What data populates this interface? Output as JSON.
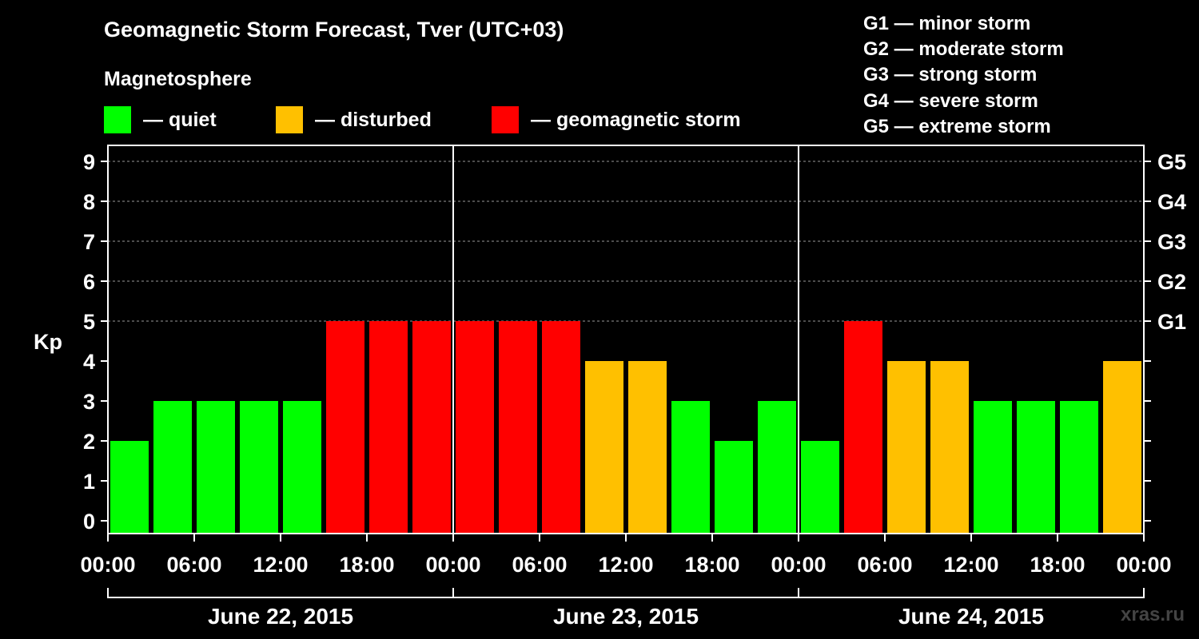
{
  "title": "Geomagnetic Storm Forecast, Tver (UTC+03)",
  "legend": {
    "heading": "Magnetosphere",
    "items": [
      {
        "label": "— quiet",
        "color": "#00ff00"
      },
      {
        "label": "— disturbed",
        "color": "#ffc000"
      },
      {
        "label": "— geomagnetic storm",
        "color": "#ff0000"
      }
    ]
  },
  "storm_scale": [
    "G1 — minor storm",
    "G2 — moderate storm",
    "G3 — strong storm",
    "G4 — severe storm",
    "G5 — extreme storm"
  ],
  "watermark": "xras.ru",
  "chart_data": {
    "type": "bar",
    "ylabel": "Kp",
    "ylim": [
      0,
      9
    ],
    "yticks": [
      "0",
      "1",
      "2",
      "3",
      "4",
      "5",
      "6",
      "7",
      "8",
      "9"
    ],
    "right_ticks": [
      {
        "kp": 5,
        "label": "G1"
      },
      {
        "kp": 6,
        "label": "G2"
      },
      {
        "kp": 7,
        "label": "G3"
      },
      {
        "kp": 8,
        "label": "G4"
      },
      {
        "kp": 9,
        "label": "G5"
      }
    ],
    "grid": "horizontal dashed at Kp 5–9",
    "x_tick_labels": [
      "00:00",
      "06:00",
      "12:00",
      "18:00",
      "00:00",
      "06:00",
      "12:00",
      "18:00",
      "00:00",
      "06:00",
      "12:00",
      "18:00",
      "00:00"
    ],
    "days": [
      "June 22, 2015",
      "June 23, 2015",
      "June 24, 2015"
    ],
    "values": [
      2,
      3,
      3,
      3,
      3,
      5,
      5,
      5,
      5,
      5,
      5,
      4,
      4,
      3,
      2,
      3,
      2,
      5,
      4,
      4,
      3,
      3,
      3,
      4
    ],
    "colors": {
      "quiet": "#00ff00",
      "disturbed": "#ffc000",
      "storm": "#ff0000"
    }
  }
}
